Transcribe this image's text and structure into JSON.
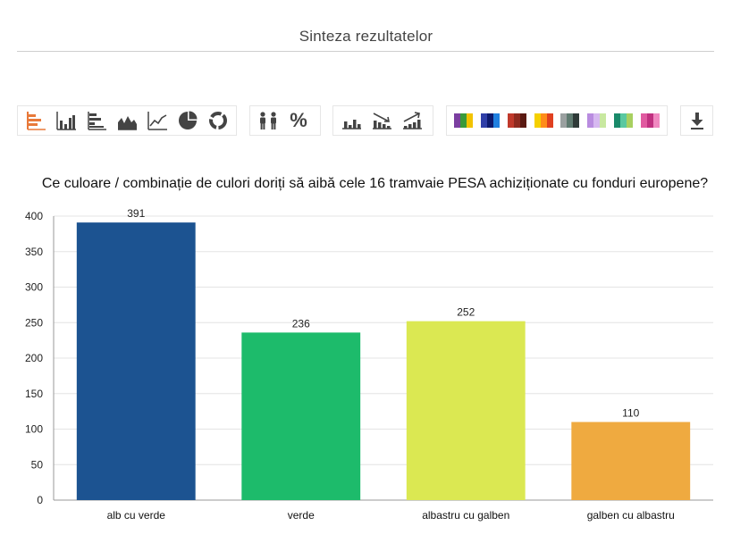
{
  "page": {
    "title": "Sinteza rezultatelor"
  },
  "toolbar": {
    "chart_types": [
      {
        "name": "bar-chart-horizontal-icon",
        "color": "#e8793a"
      },
      {
        "name": "bar-chart-icon",
        "color": "#444444"
      },
      {
        "name": "bar-chart-stacked-icon",
        "color": "#444444"
      },
      {
        "name": "area-chart-icon",
        "color": "#444444"
      },
      {
        "name": "line-chart-icon",
        "color": "#444444"
      },
      {
        "name": "pie-chart-icon",
        "color": "#444444"
      },
      {
        "name": "donut-chart-icon",
        "color": "#444444"
      }
    ],
    "display_modes": [
      {
        "name": "people-count-icon"
      },
      {
        "name": "percent-icon",
        "label": "%"
      }
    ],
    "sort_modes": [
      {
        "name": "sort-none-icon"
      },
      {
        "name": "sort-descending-icon"
      },
      {
        "name": "sort-ascending-icon"
      }
    ],
    "palettes": [
      {
        "name": "palette-1",
        "colors": [
          "#7b3fa0",
          "#3a9a3a",
          "#f2c300"
        ]
      },
      {
        "name": "palette-2",
        "colors": [
          "#2f3fa8",
          "#0d1a6e",
          "#2080e0"
        ]
      },
      {
        "name": "palette-3",
        "colors": [
          "#c0392b",
          "#8e2a1f",
          "#5a1a12"
        ]
      },
      {
        "name": "palette-4",
        "colors": [
          "#f5d000",
          "#ff8c1a",
          "#e04020"
        ]
      },
      {
        "name": "palette-5",
        "colors": [
          "#9aa0a0",
          "#5f7a70",
          "#2f3a38"
        ]
      },
      {
        "name": "palette-6",
        "colors": [
          "#b98ce0",
          "#d6b8f0",
          "#c8e8a0"
        ]
      },
      {
        "name": "palette-7",
        "colors": [
          "#1a8a6a",
          "#5ac8a0",
          "#a8d060"
        ]
      },
      {
        "name": "palette-8",
        "colors": [
          "#e05aa0",
          "#c03080",
          "#f088c0"
        ]
      }
    ],
    "download": {
      "name": "download-icon"
    }
  },
  "chart_data": {
    "type": "bar",
    "title": "Ce culoare / combinație de culori doriți să aibă cele 16 tramvaie PESA achiziționate cu fonduri europene?",
    "categories": [
      "alb cu verde",
      "verde",
      "albastru cu galben",
      "galben cu albastru"
    ],
    "values": [
      391,
      236,
      252,
      110
    ],
    "colors": [
      "#1c5391",
      "#1dbb6b",
      "#dbe852",
      "#efaa40"
    ],
    "value_labels": [
      "391",
      "236",
      "252",
      "110"
    ],
    "ylim": [
      0,
      400
    ],
    "yticks": [
      0,
      50,
      100,
      150,
      200,
      250,
      300,
      350,
      400
    ],
    "xlabel": "",
    "ylabel": "",
    "grid": true,
    "legend": "none"
  }
}
